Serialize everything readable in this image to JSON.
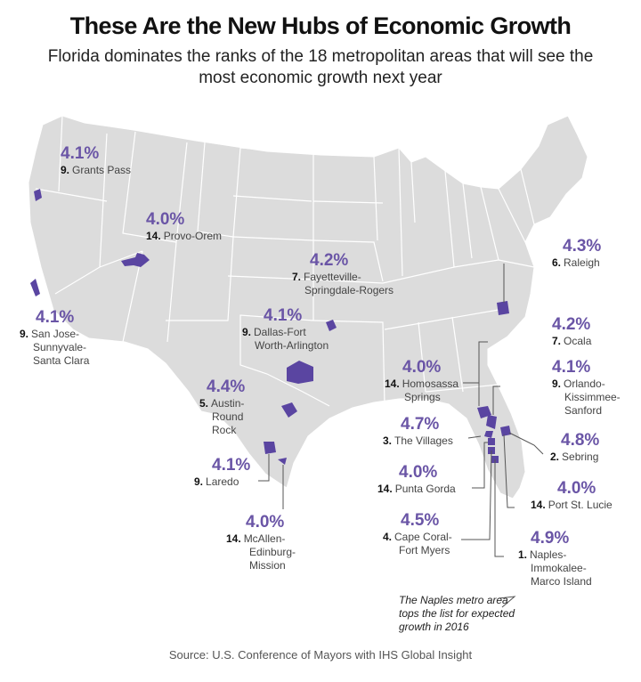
{
  "title": "These Are the New Hubs of Economic Growth",
  "subtitle": "Florida dominates the ranks of the 18 metropolitan areas that will see the most economic growth next year",
  "colors": {
    "land": "#dcdcdc",
    "border": "#ffffff",
    "highlight": "#5a45a1",
    "pct": "#6a55a6"
  },
  "metros": [
    {
      "rank": "9.",
      "name": "Grants Pass",
      "growth": "4.1%"
    },
    {
      "rank": "14.",
      "name": "Provo-Orem",
      "growth": "4.0%"
    },
    {
      "rank": "9.",
      "name": "San Jose-Sunnyvale-Santa Clara",
      "lines": [
        "San Jose-",
        "Sunnyvale-",
        "Santa Clara"
      ],
      "growth": "4.1%"
    },
    {
      "rank": "7.",
      "name": "Fayetteville-Springdale-Rogers",
      "lines": [
        "Fayetteville-",
        "Springdale-Rogers"
      ],
      "growth": "4.2%"
    },
    {
      "rank": "9.",
      "name": "Dallas-Fort Worth-Arlington",
      "lines": [
        "Dallas-Fort",
        "Worth-Arlington"
      ],
      "growth": "4.1%"
    },
    {
      "rank": "5.",
      "name": "Austin-Round Rock",
      "lines": [
        "Austin-",
        "Round",
        "Rock"
      ],
      "growth": "4.4%"
    },
    {
      "rank": "9.",
      "name": "Laredo",
      "growth": "4.1%"
    },
    {
      "rank": "14.",
      "name": "McAllen-Edinburg-Mission",
      "lines": [
        "McAllen-",
        "Edinburg-",
        "Mission"
      ],
      "growth": "4.0%"
    },
    {
      "rank": "6.",
      "name": "Raleigh",
      "growth": "4.3%"
    },
    {
      "rank": "7.",
      "name": "Ocala",
      "growth": "4.2%"
    },
    {
      "rank": "14.",
      "name": "Homosassa Springs",
      "lines": [
        "Homosassa",
        "Springs"
      ],
      "growth": "4.0%"
    },
    {
      "rank": "9.",
      "name": "Orlando-Kissimmee-Sanford",
      "lines": [
        "Orlando-",
        "Kissimmee-",
        "Sanford"
      ],
      "growth": "4.1%"
    },
    {
      "rank": "3.",
      "name": "The Villages",
      "growth": "4.7%"
    },
    {
      "rank": "2.",
      "name": "Sebring",
      "growth": "4.8%"
    },
    {
      "rank": "14.",
      "name": "Punta Gorda",
      "growth": "4.0%"
    },
    {
      "rank": "14.",
      "name": "Port St. Lucie",
      "growth": "4.0%"
    },
    {
      "rank": "4.",
      "name": "Cape Coral-Fort Myers",
      "lines": [
        "Cape Coral-",
        "Fort Myers"
      ],
      "growth": "4.5%"
    },
    {
      "rank": "1.",
      "name": "Naples-Immokalee-Marco Island",
      "lines": [
        "Naples-",
        "Immokalee-",
        "Marco Island"
      ],
      "growth": "4.9%"
    }
  ],
  "note": "The Naples metro area tops the list for expected growth in 2016",
  "source": "Source: U.S. Conference of Mayors with IHS Global Insight"
}
